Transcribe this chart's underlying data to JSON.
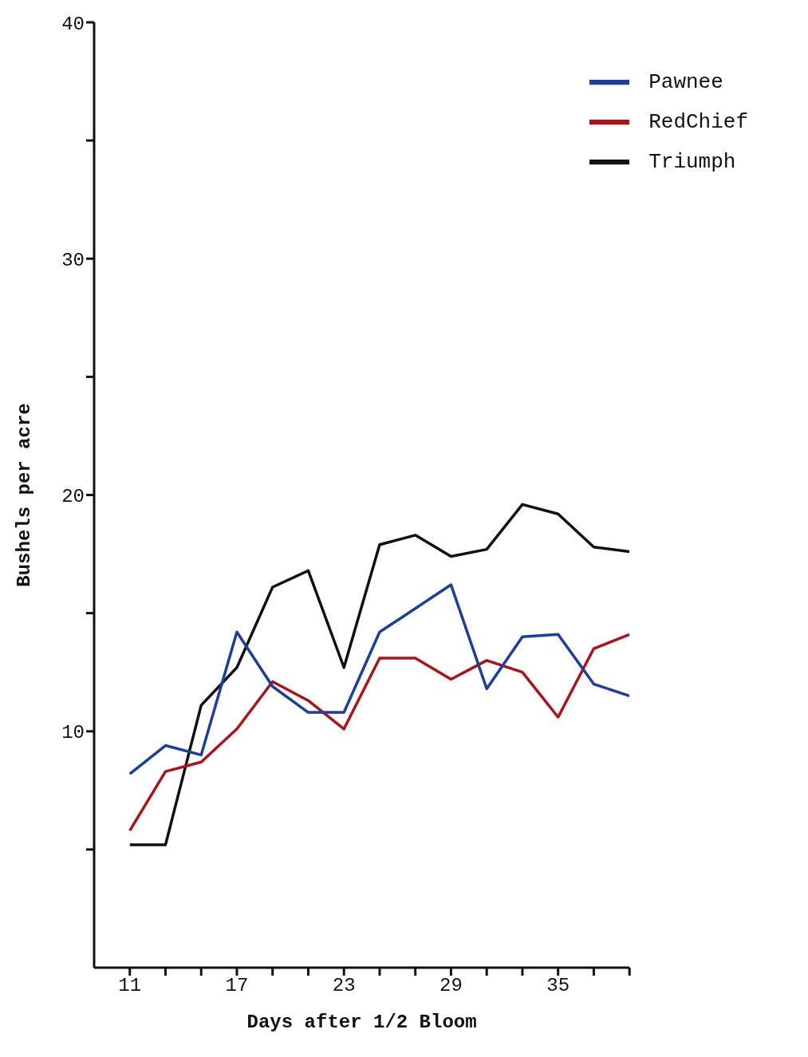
{
  "chart_data": {
    "type": "line",
    "xlabel": "Days after 1/2 Bloom",
    "ylabel": "Bushels per acre",
    "x": [
      11,
      13,
      15,
      17,
      19,
      21,
      23,
      25,
      27,
      29,
      31,
      33,
      35,
      37,
      39
    ],
    "series": [
      {
        "name": "Triumph",
        "color": "#111111",
        "values": [
          5.2,
          5.2,
          11.1,
          12.7,
          16.1,
          16.8,
          12.7,
          17.9,
          18.3,
          17.4,
          17.7,
          19.6,
          19.2,
          17.8,
          17.6
        ]
      },
      {
        "name": "RedChief",
        "color": "#b0101a",
        "values": [
          5.8,
          8.3,
          8.7,
          10.1,
          12.1,
          11.3,
          10.1,
          13.1,
          13.1,
          12.2,
          13.0,
          12.5,
          10.6,
          13.5,
          14.1
        ]
      },
      {
        "name": "Pawnee",
        "color": "#1a3fa0",
        "values": [
          8.2,
          9.4,
          9.0,
          14.2,
          11.9,
          10.8,
          10.8,
          14.2,
          15.2,
          16.2,
          11.8,
          14.0,
          14.1,
          12.0,
          11.5
        ]
      }
    ],
    "xlim": [
      9,
      39
    ],
    "xticks": [
      {
        "value": 11,
        "label": "11"
      },
      {
        "value": 13,
        "label": null
      },
      {
        "value": 15,
        "label": null
      },
      {
        "value": 17,
        "label": "17"
      },
      {
        "value": 19,
        "label": null
      },
      {
        "value": 21,
        "label": null
      },
      {
        "value": 23,
        "label": "23"
      },
      {
        "value": 25,
        "label": null
      },
      {
        "value": 27,
        "label": null
      },
      {
        "value": 29,
        "label": "29"
      },
      {
        "value": 31,
        "label": null
      },
      {
        "value": 33,
        "label": null
      },
      {
        "value": 35,
        "label": "35"
      },
      {
        "value": 37,
        "label": null
      },
      {
        "value": 39,
        "label": null
      }
    ],
    "ylim": [
      0,
      40
    ],
    "yticks": [
      {
        "value": 5,
        "label": null
      },
      {
        "value": 10,
        "label": "10"
      },
      {
        "value": 15,
        "label": null
      },
      {
        "value": 20,
        "label": "20"
      },
      {
        "value": 25,
        "label": null
      },
      {
        "value": 30,
        "label": "30"
      },
      {
        "value": 35,
        "label": null
      },
      {
        "value": 40,
        "label": "40"
      }
    ],
    "grid": false,
    "legend": "top right",
    "marker": "none",
    "line_style": "solid"
  }
}
